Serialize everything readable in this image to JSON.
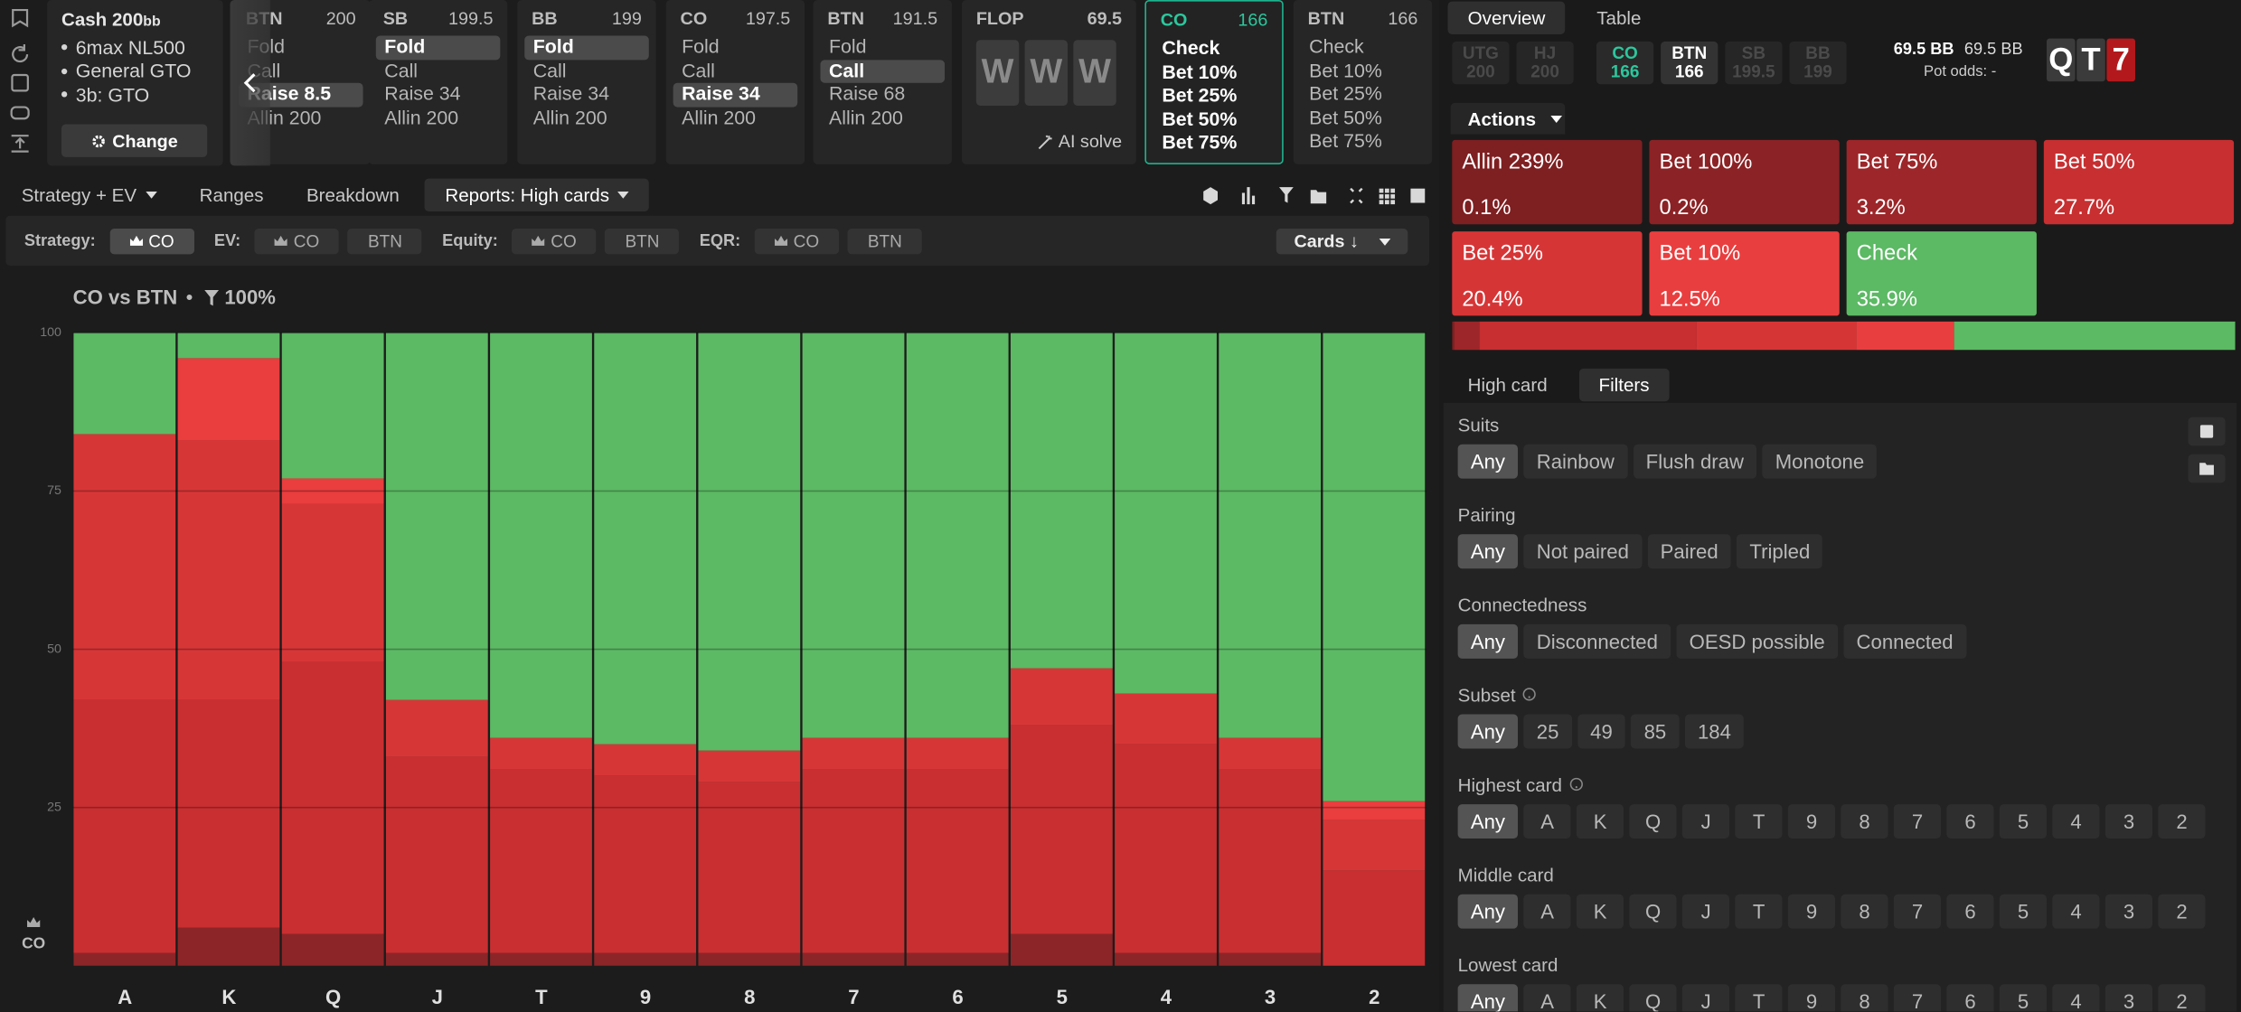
{
  "sidebar": {
    "game": "Cash",
    "stack": 200,
    "stack_unit": "bb",
    "items": [
      "6max NL500",
      "General GTO",
      "3b: GTO"
    ],
    "button": "Change"
  },
  "columns": [
    {
      "position": "BTN",
      "stack": 200,
      "actions": [
        "Fold",
        "Call",
        "Raise 8.5",
        "Allin 200"
      ],
      "selected": 2
    },
    {
      "position": "SB",
      "stack": 199.5,
      "actions": [
        "Fold",
        "Call",
        "Raise 34",
        "Allin 200"
      ],
      "selected": 0
    },
    {
      "position": "BB",
      "stack": 199,
      "actions": [
        "Fold",
        "Call",
        "Raise 34",
        "Allin 200"
      ],
      "selected": 0
    },
    {
      "position": "CO",
      "stack": 197.5,
      "actions": [
        "Fold",
        "Call",
        "Raise 34",
        "Allin 200"
      ],
      "selected": 2
    },
    {
      "position": "BTN",
      "stack": 191.5,
      "actions": [
        "Fold",
        "Call",
        "Raise 68",
        "Allin 200"
      ],
      "selected": 1
    }
  ],
  "flop": {
    "label": "FLOP",
    "pot": 69.5,
    "cards": [
      "W",
      "W",
      "W"
    ],
    "button": "AI solve"
  },
  "street_columns": [
    {
      "position": "CO",
      "stack": 166,
      "actions": [
        "Check",
        "Bet 10%",
        "Bet 25%",
        "Bet 50%",
        "Bet 75%"
      ],
      "active": true
    },
    {
      "position": "BTN",
      "stack": 166,
      "actions": [
        "Check",
        "Bet 10%",
        "Bet 25%",
        "Bet 50%",
        "Bet 75%"
      ],
      "active": false
    }
  ],
  "tabs": {
    "items": [
      "Strategy + EV",
      "Ranges",
      "Breakdown",
      "Reports: High cards"
    ],
    "active": 3
  },
  "toolbar": {
    "groups": [
      {
        "label": "Strategy:",
        "options": [
          "CO"
        ],
        "active": 0
      },
      {
        "label": "EV:",
        "options": [
          "CO",
          "BTN"
        ]
      },
      {
        "label": "Equity:",
        "options": [
          "CO",
          "BTN"
        ]
      },
      {
        "label": "EQR:",
        "options": [
          "CO",
          "BTN"
        ]
      }
    ],
    "sort": "Cards ↓"
  },
  "chart_data": {
    "type": "bar",
    "stacked": true,
    "title": "CO vs BTN",
    "filter": "100%",
    "player": "CO",
    "categories": [
      "A",
      "K",
      "Q",
      "J",
      "T",
      "9",
      "8",
      "7",
      "6",
      "5",
      "4",
      "3",
      "2"
    ],
    "series": [
      {
        "color": "#8c2527",
        "values": [
          2,
          6,
          5,
          2,
          2,
          2,
          2,
          2,
          2,
          5,
          2,
          2,
          0
        ]
      },
      {
        "color": "#c92f31",
        "values": [
          40,
          36,
          43,
          31,
          29,
          28,
          27,
          29,
          29,
          33,
          33,
          29,
          15
        ]
      },
      {
        "color": "#d73637",
        "values": [
          42,
          41,
          25,
          9,
          5,
          5,
          5,
          5,
          5,
          9,
          8,
          5,
          8
        ]
      },
      {
        "color": "#e93d3e",
        "values": [
          0,
          13,
          4,
          0,
          0,
          0,
          0,
          0,
          0,
          0,
          0,
          0,
          3
        ]
      },
      {
        "color": "#5cb964",
        "values": [
          16,
          4,
          23,
          58,
          64,
          65,
          66,
          64,
          64,
          53,
          57,
          64,
          74
        ]
      }
    ],
    "ylim": [
      0,
      100
    ],
    "yticks": [
      25,
      50,
      75,
      100
    ],
    "grid": true
  },
  "overview": {
    "tabs": [
      "Overview",
      "Table"
    ],
    "active": 0,
    "positions": [
      {
        "name": "UTG",
        "stack": 200,
        "state": "folded"
      },
      {
        "name": "HJ",
        "stack": 200,
        "state": "folded"
      },
      {
        "name": "CO",
        "stack": 166,
        "state": "acting"
      },
      {
        "name": "BTN",
        "stack": 166,
        "state": "live"
      },
      {
        "name": "SB",
        "stack": 199.5,
        "state": "folded"
      },
      {
        "name": "BB",
        "stack": 199,
        "state": "folded"
      }
    ],
    "pot": "69.5 BB",
    "pot_total": "69.5 BB",
    "pot_odds_label": "Pot odds:",
    "pot_odds": "-",
    "board": [
      "Q",
      "T",
      "7"
    ],
    "board_colors": [
      "#3b3b3b",
      "#3b3b3b",
      "#b3191c"
    ]
  },
  "actions_menu": "Actions",
  "actions": {
    "names": [
      "Allin 239%",
      "Bet 100%",
      "Bet 75%",
      "Bet 50%",
      "Bet 25%",
      "Bet 10%",
      "Check"
    ],
    "values": [
      0.1,
      0.2,
      3.2,
      27.7,
      20.4,
      12.5,
      35.9
    ],
    "value_labels": [
      "0.1%",
      "0.2%",
      "3.2%",
      "27.7%",
      "20.4%",
      "12.5%",
      "35.9%"
    ],
    "colors": [
      "#7e1f21",
      "#8b2225",
      "#9c2629",
      "#c72f31",
      "#d63536",
      "#e93e3f",
      "#5cb964"
    ]
  },
  "filters": {
    "tabs": [
      "High card",
      "Filters"
    ],
    "active": 1,
    "groups": [
      {
        "label": "Suits",
        "options": [
          "Any",
          "Rainbow",
          "Flush draw",
          "Monotone"
        ],
        "active": 0
      },
      {
        "label": "Pairing",
        "options": [
          "Any",
          "Not paired",
          "Paired",
          "Tripled"
        ],
        "active": 0
      },
      {
        "label": "Connectedness",
        "options": [
          "Any",
          "Disconnected",
          "OESD possible",
          "Connected"
        ],
        "active": 0
      },
      {
        "label": "Subset",
        "options": [
          "Any",
          25,
          49,
          85,
          184
        ],
        "active": 0,
        "help": true
      },
      {
        "label": "Highest card",
        "options": [
          "Any",
          "A",
          "K",
          "Q",
          "J",
          "T",
          "9",
          "8",
          "7",
          "6",
          "5",
          "4",
          "3",
          "2"
        ],
        "active": 0,
        "help": true
      },
      {
        "label": "Middle card",
        "options": [
          "Any",
          "A",
          "K",
          "Q",
          "J",
          "T",
          "9",
          "8",
          "7",
          "6",
          "5",
          "4",
          "3",
          "2"
        ],
        "active": 0
      },
      {
        "label": "Lowest card",
        "options": [
          "Any",
          "A",
          "K",
          "Q",
          "J",
          "T",
          "9",
          "8",
          "7",
          "6",
          "5",
          "4",
          "3",
          "2"
        ],
        "active": 0
      }
    ]
  }
}
